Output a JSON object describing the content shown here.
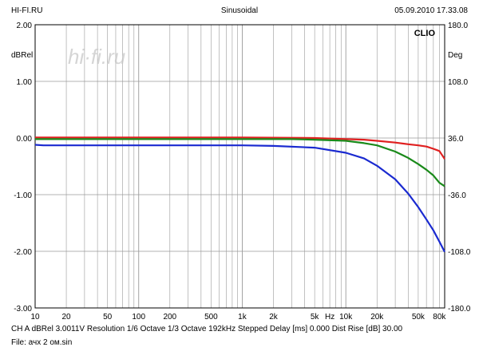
{
  "header": {
    "left": "HI-FI.RU",
    "center": "Sinusoidal",
    "right": "05.09.2010 17.33.08"
  },
  "watermark": "hi·fi.ru",
  "brand": "CLIO",
  "footer": {
    "line1": "CH A   dBRel 3.0011V   Resolution 1/6 Octave    1/3 Octave   192kHz   Stepped       Delay [ms] 0.000     Dist Rise [dB] 30.00",
    "line2": "File: ачх 2 ом.sin"
  },
  "chart_data": {
    "type": "line",
    "xscale": "log",
    "xlim": [
      10,
      90000
    ],
    "ylim": [
      -3.0,
      2.0
    ],
    "y2lim": [
      -180.0,
      180.0
    ],
    "ylabel": "dBRel",
    "y2label": "Deg",
    "xlabel": "Hz",
    "grid": true,
    "x_ticks": [
      {
        "value": 10,
        "label": "10"
      },
      {
        "value": 20,
        "label": "20"
      },
      {
        "value": 50,
        "label": "50"
      },
      {
        "value": 100,
        "label": "100"
      },
      {
        "value": 200,
        "label": "200"
      },
      {
        "value": 500,
        "label": "500"
      },
      {
        "value": 1000,
        "label": "1k"
      },
      {
        "value": 2000,
        "label": "2k"
      },
      {
        "value": 5000,
        "label": "5k"
      },
      {
        "value": 10000,
        "label": "10k"
      },
      {
        "value": 20000,
        "label": "20k"
      },
      {
        "value": 50000,
        "label": "50k"
      },
      {
        "value": 80000,
        "label": "80k"
      }
    ],
    "y_ticks": [
      "2.00",
      "1.00",
      "0.00",
      "-1.00",
      "-2.00",
      "-3.00"
    ],
    "y_tick_values": [
      2,
      1,
      0,
      -1,
      -2,
      -3
    ],
    "y2_ticks": [
      "180.0",
      "108.0",
      "36.0",
      "-36.0",
      "-108.0",
      "-180.0"
    ],
    "series": [
      {
        "color": "#e02020",
        "x": [
          10,
          100,
          1000,
          5000,
          10000,
          15000,
          20000,
          30000,
          40000,
          50000,
          60000,
          70000,
          80000,
          90000
        ],
        "y": [
          0.01,
          0.01,
          0.01,
          0.0,
          -0.02,
          -0.03,
          -0.05,
          -0.08,
          -0.11,
          -0.13,
          -0.15,
          -0.19,
          -0.23,
          -0.37
        ]
      },
      {
        "color": "#1a8a1a",
        "x": [
          10,
          100,
          1000,
          3000,
          5000,
          10000,
          15000,
          20000,
          30000,
          40000,
          50000,
          60000,
          70000,
          80000,
          90000
        ],
        "y": [
          -0.02,
          -0.02,
          -0.02,
          -0.02,
          -0.03,
          -0.05,
          -0.09,
          -0.13,
          -0.24,
          -0.35,
          -0.46,
          -0.56,
          -0.66,
          -0.79,
          -0.85
        ]
      },
      {
        "color": "#1a2ad0",
        "x": [
          10,
          12,
          100,
          1000,
          2000,
          5000,
          10000,
          15000,
          20000,
          30000,
          40000,
          50000,
          60000,
          70000,
          80000,
          90000
        ],
        "y": [
          -0.12,
          -0.13,
          -0.13,
          -0.13,
          -0.14,
          -0.17,
          -0.26,
          -0.36,
          -0.49,
          -0.73,
          -0.98,
          -1.22,
          -1.44,
          -1.63,
          -1.83,
          -2.01
        ]
      }
    ]
  }
}
